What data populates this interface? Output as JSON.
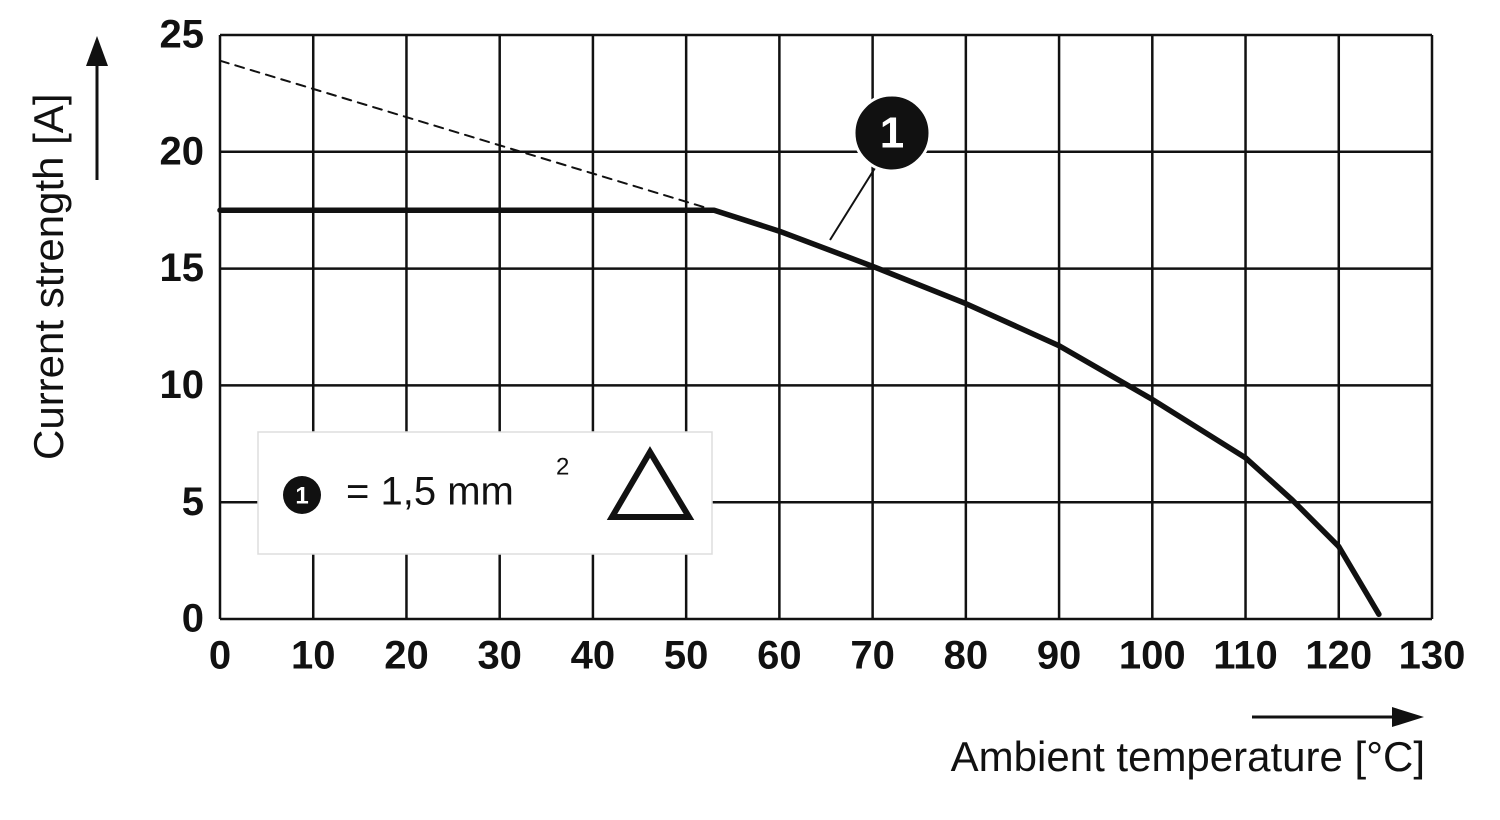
{
  "chart_data": {
    "type": "line",
    "y_label": "Current strength [A]",
    "x_label": "Ambient temperature [°C]",
    "xlim": [
      0,
      130
    ],
    "xticks": [
      0,
      10,
      20,
      30,
      40,
      50,
      60,
      70,
      80,
      90,
      100,
      110,
      120,
      130
    ],
    "ylim": [
      0,
      25
    ],
    "yticks": [
      0,
      5,
      10,
      15,
      20,
      25
    ],
    "grid": true,
    "series": [
      {
        "color": "#111111",
        "dashed": false,
        "x": [
          0,
          53,
          60,
          70,
          80,
          90,
          100,
          110,
          115,
          120,
          124.3
        ],
        "values": [
          17.5,
          17.5,
          16.6,
          15.1,
          13.5,
          11.7,
          9.4,
          6.9,
          5.1,
          3.1,
          0.2
        ]
      },
      {
        "color": "#111111",
        "dashed": true,
        "x": [
          0,
          53
        ],
        "values": [
          23.9,
          17.5
        ]
      }
    ],
    "annotation": "1",
    "legend": {
      "marker": "1",
      "text": "= 1,5 mm",
      "superscript": "2"
    }
  }
}
